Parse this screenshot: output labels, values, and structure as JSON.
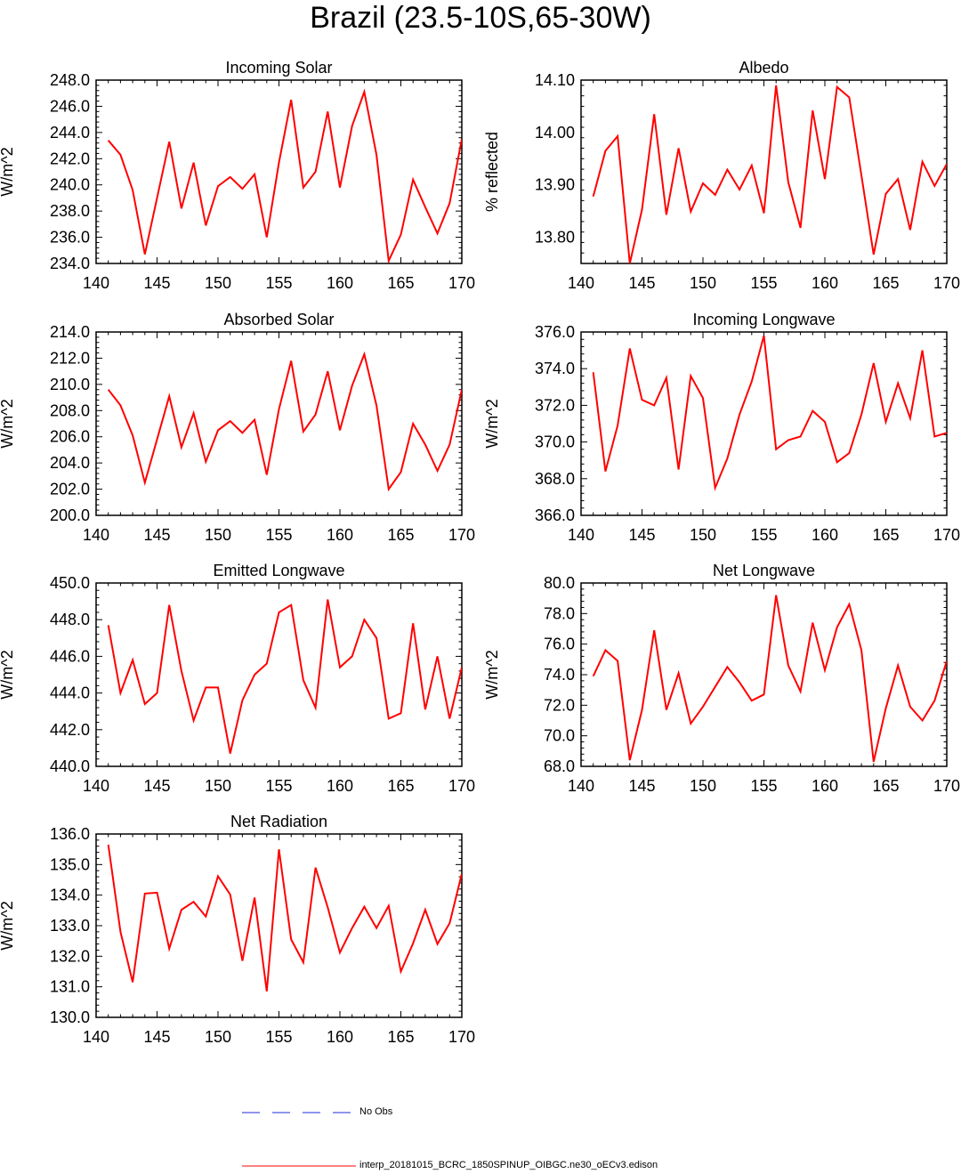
{
  "page": {
    "title": "Brazil (23.5-10S,65-30W)"
  },
  "legend": {
    "obs_label": "No Obs",
    "model_label": "interp_20181015_BCRC_1850SPINUP_OIBGC.ne30_oECv3.edison",
    "obs_color": "#1f2bd6",
    "model_color": "#ff0000"
  },
  "chart_data": [
    {
      "type": "line",
      "title": "Incoming Solar",
      "ylabel": "W/m^2",
      "xlim": [
        140,
        170
      ],
      "ylim": [
        234,
        248
      ],
      "xticks": [
        140,
        145,
        150,
        155,
        160,
        165,
        170
      ],
      "yticks": [
        "234.0",
        "236.0",
        "238.0",
        "240.0",
        "242.0",
        "244.0",
        "246.0",
        "248.0"
      ],
      "x": [
        141,
        142,
        143,
        144,
        145,
        146,
        147,
        148,
        149,
        150,
        151,
        152,
        153,
        154,
        155,
        156,
        157,
        158,
        159,
        160,
        161,
        162,
        163,
        164,
        165,
        166,
        167,
        168,
        169,
        170
      ],
      "series": [
        {
          "name": "interp_20181015_BCRC_1850SPINUP_OIBGC.ne30_oECv3.edison",
          "values": [
            243.4,
            242.3,
            239.6,
            234.7,
            239.0,
            243.3,
            238.2,
            241.7,
            236.9,
            239.9,
            240.6,
            239.7,
            240.8,
            236.0,
            241.7,
            246.5,
            239.8,
            241.0,
            245.6,
            239.8,
            244.5,
            247.1,
            242.3,
            234.2,
            236.2,
            240.4,
            238.3,
            236.3,
            238.6,
            243.5
          ]
        }
      ]
    },
    {
      "type": "line",
      "title": "Albedo",
      "ylabel": "% reflected",
      "xlim": [
        140,
        170
      ],
      "ylim": [
        13.75,
        14.1
      ],
      "xticks": [
        140,
        145,
        150,
        155,
        160,
        165,
        170
      ],
      "yticks": [
        "13.80",
        "13.90",
        "14.00",
        "14.10"
      ],
      "x": [
        141,
        142,
        143,
        144,
        145,
        146,
        147,
        148,
        149,
        150,
        151,
        152,
        153,
        154,
        155,
        156,
        157,
        158,
        159,
        160,
        161,
        162,
        163,
        164,
        165,
        166,
        167,
        168,
        169,
        170
      ],
      "series": [
        {
          "name": "interp_20181015_BCRC_1850SPINUP_OIBGC.ne30_oECv3.edison",
          "values": [
            13.878,
            13.965,
            13.993,
            13.75,
            13.853,
            14.035,
            13.843,
            13.97,
            13.849,
            13.903,
            13.881,
            13.929,
            13.891,
            13.937,
            13.846,
            14.09,
            13.905,
            13.818,
            14.042,
            13.911,
            14.087,
            14.067,
            13.918,
            13.767,
            13.883,
            13.911,
            13.814,
            13.944,
            13.898,
            13.94
          ]
        }
      ]
    },
    {
      "type": "line",
      "title": "Absorbed Solar",
      "ylabel": "W/m^2",
      "xlim": [
        140,
        170
      ],
      "ylim": [
        200,
        214
      ],
      "xticks": [
        140,
        145,
        150,
        155,
        160,
        165,
        170
      ],
      "yticks": [
        "200.0",
        "202.0",
        "204.0",
        "206.0",
        "208.0",
        "210.0",
        "212.0",
        "214.0"
      ],
      "x": [
        141,
        142,
        143,
        144,
        145,
        146,
        147,
        148,
        149,
        150,
        151,
        152,
        153,
        154,
        155,
        156,
        157,
        158,
        159,
        160,
        161,
        162,
        163,
        164,
        165,
        166,
        167,
        168,
        169,
        170
      ],
      "series": [
        {
          "name": "interp_20181015_BCRC_1850SPINUP_OIBGC.ne30_oECv3.edison",
          "values": [
            209.6,
            208.4,
            206.1,
            202.5,
            205.8,
            209.1,
            205.2,
            207.8,
            204.1,
            206.5,
            207.2,
            206.3,
            207.3,
            203.1,
            208.1,
            211.8,
            206.4,
            207.7,
            211.0,
            206.5,
            209.9,
            212.3,
            208.4,
            202.0,
            203.3,
            207.0,
            205.4,
            203.4,
            205.4,
            209.6
          ]
        }
      ]
    },
    {
      "type": "line",
      "title": "Incoming Longwave",
      "ylabel": "W/m^2",
      "xlim": [
        140,
        170
      ],
      "ylim": [
        366,
        376
      ],
      "xticks": [
        140,
        145,
        150,
        155,
        160,
        165,
        170
      ],
      "yticks": [
        "366.0",
        "368.0",
        "370.0",
        "372.0",
        "374.0",
        "376.0"
      ],
      "x": [
        141,
        142,
        143,
        144,
        145,
        146,
        147,
        148,
        149,
        150,
        151,
        152,
        153,
        154,
        155,
        156,
        157,
        158,
        159,
        160,
        161,
        162,
        163,
        164,
        165,
        166,
        167,
        168,
        169,
        170
      ],
      "series": [
        {
          "name": "interp_20181015_BCRC_1850SPINUP_OIBGC.ne30_oECv3.edison",
          "values": [
            373.8,
            368.4,
            370.9,
            375.1,
            372.3,
            372.0,
            373.5,
            368.5,
            373.6,
            372.4,
            367.5,
            369.1,
            371.5,
            373.3,
            375.8,
            369.6,
            370.1,
            370.3,
            371.7,
            371.1,
            368.9,
            369.4,
            371.5,
            374.3,
            371.1,
            373.2,
            371.3,
            375.0,
            370.3,
            370.5
          ]
        }
      ]
    },
    {
      "type": "line",
      "title": "Emitted Longwave",
      "ylabel": "W/m^2",
      "xlim": [
        140,
        170
      ],
      "ylim": [
        440,
        450
      ],
      "xticks": [
        140,
        145,
        150,
        155,
        160,
        165,
        170
      ],
      "yticks": [
        "440.0",
        "442.0",
        "444.0",
        "446.0",
        "448.0",
        "450.0"
      ],
      "x": [
        141,
        142,
        143,
        144,
        145,
        146,
        147,
        148,
        149,
        150,
        151,
        152,
        153,
        154,
        155,
        156,
        157,
        158,
        159,
        160,
        161,
        162,
        163,
        164,
        165,
        166,
        167,
        168,
        169,
        170
      ],
      "series": [
        {
          "name": "interp_20181015_BCRC_1850SPINUP_OIBGC.ne30_oECv3.edison",
          "values": [
            447.7,
            444.0,
            445.8,
            443.4,
            444.0,
            448.8,
            445.2,
            442.5,
            444.3,
            444.3,
            440.7,
            443.6,
            445.0,
            445.6,
            448.4,
            448.8,
            444.7,
            443.2,
            449.1,
            445.4,
            446.0,
            448.0,
            447.0,
            442.6,
            442.9,
            447.8,
            443.1,
            446.0,
            442.6,
            445.4
          ]
        }
      ]
    },
    {
      "type": "line",
      "title": "Net Longwave",
      "ylabel": "W/m^2",
      "xlim": [
        140,
        170
      ],
      "ylim": [
        68,
        80
      ],
      "xticks": [
        140,
        145,
        150,
        155,
        160,
        165,
        170
      ],
      "yticks": [
        "68.0",
        "70.0",
        "72.0",
        "74.0",
        "76.0",
        "78.0",
        "80.0"
      ],
      "x": [
        141,
        142,
        143,
        144,
        145,
        146,
        147,
        148,
        149,
        150,
        151,
        152,
        153,
        154,
        155,
        156,
        157,
        158,
        159,
        160,
        161,
        162,
        163,
        164,
        165,
        166,
        167,
        168,
        169,
        170
      ],
      "series": [
        {
          "name": "interp_20181015_BCRC_1850SPINUP_OIBGC.ne30_oECv3.edison",
          "values": [
            73.9,
            75.6,
            74.9,
            68.4,
            71.7,
            76.9,
            71.7,
            74.1,
            70.8,
            71.9,
            73.2,
            74.5,
            73.5,
            72.3,
            72.7,
            79.2,
            74.6,
            72.9,
            77.4,
            74.3,
            77.1,
            78.6,
            75.6,
            68.3,
            71.8,
            74.6,
            71.9,
            71.0,
            72.3,
            74.9
          ]
        }
      ]
    },
    {
      "type": "line",
      "title": "Net Radiation",
      "ylabel": "W/m^2",
      "xlim": [
        140,
        170
      ],
      "ylim": [
        130,
        136
      ],
      "xticks": [
        140,
        145,
        150,
        155,
        160,
        165,
        170
      ],
      "yticks": [
        "130.0",
        "131.0",
        "132.0",
        "133.0",
        "134.0",
        "135.0",
        "136.0"
      ],
      "x": [
        141,
        142,
        143,
        144,
        145,
        146,
        147,
        148,
        149,
        150,
        151,
        152,
        153,
        154,
        155,
        156,
        157,
        158,
        159,
        160,
        161,
        162,
        163,
        164,
        165,
        166,
        167,
        168,
        169,
        170
      ],
      "series": [
        {
          "name": "interp_20181015_BCRC_1850SPINUP_OIBGC.ne30_oECv3.edison",
          "values": [
            135.65,
            132.8,
            131.15,
            134.05,
            134.08,
            132.25,
            133.52,
            133.78,
            133.3,
            134.62,
            134.02,
            131.85,
            133.92,
            130.85,
            135.5,
            132.55,
            131.8,
            134.9,
            133.6,
            132.12,
            132.92,
            133.62,
            132.92,
            133.65,
            131.5,
            132.42,
            133.52,
            132.4,
            133.08,
            134.7
          ]
        }
      ]
    }
  ]
}
